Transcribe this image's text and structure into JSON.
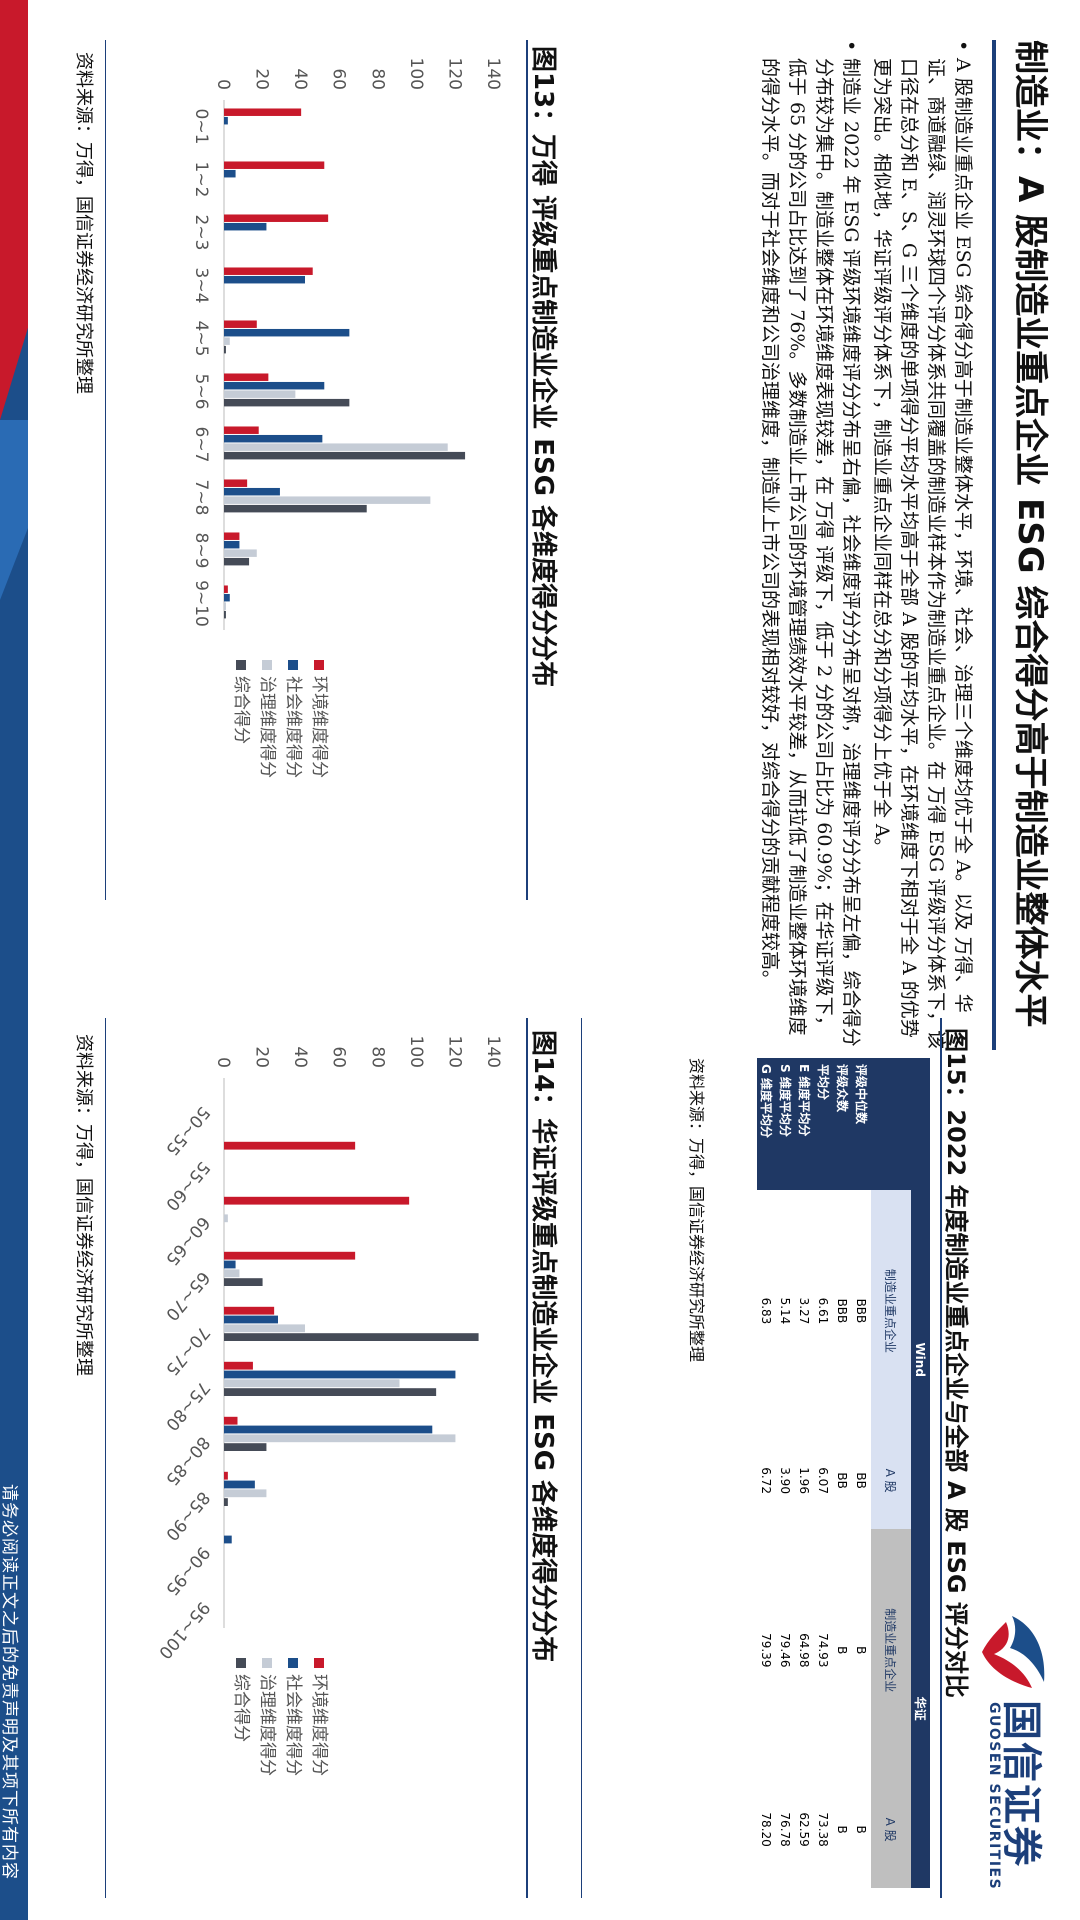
{
  "page": {
    "title": "制造业：A 股制造业重点企业 ESG 综合得分高于制造业整体水平",
    "disclaimer": "请务必阅读正文之后的免责声明及其项下所有内容"
  },
  "logo": {
    "cn": "国信证券",
    "en": "GUOSEN SECURITIES"
  },
  "bullets": [
    "A 股制造业重点企业 ESG 综合得分高于制造业整体水平，环境、社会、治理三个维度均优于全 A。以及 万得、华证、商道融绿、润灵环球四个评分体系共同覆盖的制造业样本作为制造业重点企业。在 万得 ESG 评级评分体系下，该口径在总分和 E、S、G 三个维度的单项得分平均水平均高于全部 A 股的平均水平，在环境维度下相对于全 A 的优势更为突出。相似地，华证评级评分体系下，制造业重点企业同样在总分和分项得分上优于全 A。",
    "制造业 2022 年 ESG 评级环境维度评分分布呈右偏，社会维度评分分布呈对称，治理维度评分分布呈左偏，综合得分分布较为集中。制造业整体在环境维度表现较差，在 万得 评级下，低于 2 分的公司占比为 60.9%；在华证评级下，低于 65 分的公司占比达到了 76%。多数制造业上市公司的环境管理绩效水平较差，从而拉低了制造业整体环境维度的得分水平。而对于社会维度和公司治理维度，制造业上市公司的表现相对较好，对综合得分的贡献程度较高。"
  ],
  "figures": {
    "fig13": {
      "title": "图13：万得 评级重点制造业企业 ESG 各维度得分分布",
      "source": "资料来源：万得，国信证券经济研究所整理"
    },
    "fig14": {
      "title": "图14：华证评级重点制造业企业 ESG 各维度得分分布",
      "source": "资料来源：万得，国信证券经济研究所整理"
    },
    "fig15": {
      "title": "图15：2022 年度制造业重点企业与全部 A 股 ESG 评分对比",
      "source": "资料来源：万得，国信证券经济研究所整理",
      "groups": [
        "Wind",
        "华证"
      ],
      "columns": [
        "制造业重点企业",
        "A 股",
        "制造业重点企业",
        "A 股"
      ],
      "rows": [
        {
          "label": "评级中位数",
          "values": [
            "BBB",
            "BB",
            "B",
            "B"
          ]
        },
        {
          "label": "评级众数",
          "values": [
            "BBB",
            "BB",
            "B",
            "B"
          ]
        },
        {
          "label": "平均分",
          "values": [
            "6.61",
            "6.07",
            "74.93",
            "73.38"
          ]
        },
        {
          "label": "E 维度平均分",
          "values": [
            "3.27",
            "1.96",
            "64.98",
            "62.59"
          ]
        },
        {
          "label": "S 维度平均分",
          "values": [
            "5.14",
            "3.90",
            "79.46",
            "76.78"
          ]
        },
        {
          "label": "G 维度平均分",
          "values": [
            "6.83",
            "6.72",
            "79.39",
            "78.20"
          ]
        }
      ]
    }
  },
  "colors": {
    "env": "#c8192b",
    "soc": "#1c4e8a",
    "gov": "#c5ccd6",
    "total": "#454b57",
    "navy": "#1c3f7a",
    "table_header": "#1f3864",
    "table_sub_wind": "#d9e1f2",
    "table_sub_hz": "#bfbfbf"
  },
  "chart_data": [
    {
      "type": "bar",
      "title": "图13：万得 评级重点制造业企业 ESG 各维度得分分布",
      "categories": [
        "0~1",
        "1~2",
        "2~3",
        "3~4",
        "4~5",
        "5~6",
        "6~7",
        "7~8",
        "8~9",
        "9~10"
      ],
      "ylim": [
        0,
        140
      ],
      "yticks": [
        0,
        20,
        40,
        60,
        80,
        100,
        120,
        140
      ],
      "legend": "right",
      "series": [
        {
          "name": "环境维度得分",
          "color": "#c8192b",
          "values": [
            40,
            52,
            54,
            46,
            17,
            23,
            18,
            12,
            8,
            2
          ]
        },
        {
          "name": "社会维度得分",
          "color": "#1c4e8a",
          "values": [
            2,
            6,
            22,
            42,
            65,
            52,
            51,
            29,
            8,
            3
          ]
        },
        {
          "name": "治理维度得分",
          "color": "#c5ccd6",
          "values": [
            0,
            0,
            0,
            0,
            3,
            37,
            116,
            107,
            17,
            1
          ]
        },
        {
          "name": "综合得分",
          "color": "#454b57",
          "values": [
            0,
            0,
            0,
            0,
            1,
            65,
            125,
            74,
            13,
            1
          ]
        }
      ]
    },
    {
      "type": "bar",
      "title": "图14：华证评级重点制造业企业 ESG 各维度得分分布",
      "categories": [
        "50~55",
        "55~60",
        "60~65",
        "65~70",
        "70~75",
        "75~80",
        "80~85",
        "85~90",
        "90~95",
        "95~100"
      ],
      "ylim": [
        0,
        140
      ],
      "yticks": [
        0,
        20,
        40,
        60,
        80,
        100,
        120,
        140
      ],
      "legend": "right",
      "series": [
        {
          "name": "环境维度得分",
          "color": "#c8192b",
          "values": [
            0,
            68,
            96,
            68,
            26,
            15,
            7,
            2,
            0,
            0
          ]
        },
        {
          "name": "社会维度得分",
          "color": "#1c4e8a",
          "values": [
            0,
            0,
            0,
            6,
            28,
            120,
            108,
            16,
            4,
            0
          ]
        },
        {
          "name": "治理维度得分",
          "color": "#c5ccd6",
          "values": [
            0,
            0,
            2,
            8,
            42,
            91,
            120,
            22,
            0,
            0
          ]
        },
        {
          "name": "综合得分",
          "color": "#454b57",
          "values": [
            0,
            0,
            0,
            20,
            132,
            110,
            22,
            2,
            0,
            0
          ]
        }
      ]
    }
  ]
}
